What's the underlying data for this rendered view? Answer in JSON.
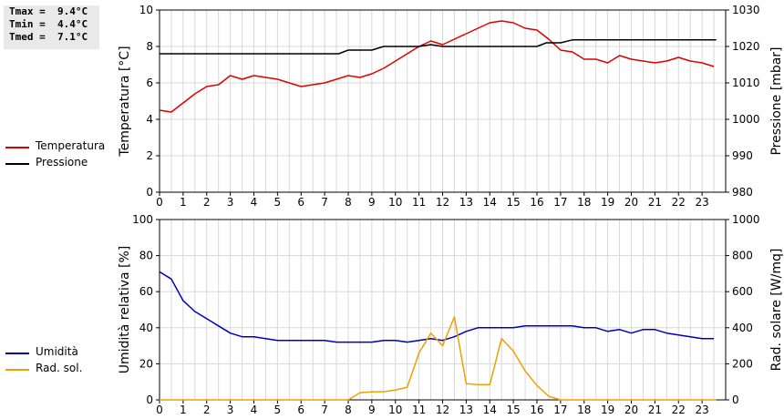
{
  "stats": {
    "tmax": "Tmax =  9.4°C",
    "tmin": "Tmin =  4.4°C",
    "tmed": "Tmed =  7.1°C"
  },
  "colors": {
    "temperature": "#dd0000",
    "pressure": "#000000",
    "humidity": "#0000bb",
    "radiation": "#f0a000",
    "grid": "#d8d8d8"
  },
  "chart_data": [
    {
      "type": "line",
      "x_ticks": [
        "0",
        "1",
        "2",
        "3",
        "4",
        "5",
        "6",
        "7",
        "8",
        "9",
        "10",
        "11",
        "12",
        "13",
        "14",
        "15",
        "16",
        "17",
        "18",
        "19",
        "20",
        "21",
        "22",
        "23"
      ],
      "y_ticks_left": [
        "0",
        "2",
        "4",
        "6",
        "8",
        "10"
      ],
      "y_ticks_right": [
        "980",
        "990",
        "1000",
        "1010",
        "1020",
        "1030"
      ],
      "ylabel_left": "Temperatura [°C]",
      "ylabel_right": "Pressione [mbar]",
      "ylim_left": [
        0,
        10
      ],
      "ylim_right": [
        980,
        1030
      ],
      "xlim": [
        0,
        24
      ],
      "grid": true,
      "legend_labels": [
        "Temperatura",
        "Pressione"
      ],
      "series": [
        {
          "name": "Temperatura",
          "axis": "left",
          "x": [
            0,
            0.5,
            1,
            1.5,
            2,
            2.5,
            3,
            3.5,
            4,
            4.5,
            5,
            5.5,
            6,
            6.5,
            7,
            7.5,
            8,
            8.5,
            9,
            9.5,
            10,
            10.5,
            11,
            11.5,
            12,
            12.5,
            13,
            13.5,
            14,
            14.5,
            15,
            15.5,
            16,
            16.5,
            17,
            17.5,
            18,
            18.5,
            19,
            19.5,
            20,
            20.5,
            21,
            21.5,
            22,
            22.5,
            23,
            23.5
          ],
          "values": [
            4.5,
            4.4,
            4.9,
            5.4,
            5.8,
            5.9,
            6.4,
            6.2,
            6.4,
            6.3,
            6.2,
            6.0,
            5.8,
            5.9,
            6.0,
            6.2,
            6.4,
            6.3,
            6.5,
            6.8,
            7.2,
            7.6,
            8.0,
            8.3,
            8.1,
            8.4,
            8.7,
            9.0,
            9.3,
            9.4,
            9.3,
            9.0,
            8.9,
            8.4,
            7.8,
            7.7,
            7.3,
            7.3,
            7.1,
            7.5,
            7.3,
            7.2,
            7.1,
            7.2,
            7.4,
            7.2,
            7.1,
            6.9
          ]
        },
        {
          "name": "Pressione",
          "axis": "right",
          "x": [
            0,
            1,
            2,
            3,
            4,
            5,
            6,
            7,
            7.6,
            8,
            8.5,
            9,
            9.5,
            10,
            11,
            11.5,
            12,
            13,
            14,
            15,
            16,
            16.4,
            17,
            17.5,
            18,
            19,
            20,
            21,
            22,
            23,
            23.6
          ],
          "values": [
            1018,
            1018,
            1018,
            1018,
            1018,
            1018,
            1018,
            1018,
            1018,
            1019,
            1019,
            1019,
            1020,
            1020,
            1020,
            1020.5,
            1020,
            1020,
            1020,
            1020,
            1020,
            1021,
            1021,
            1021.8,
            1021.8,
            1021.8,
            1021.8,
            1021.8,
            1021.8,
            1021.8,
            1021.8
          ]
        }
      ]
    },
    {
      "type": "line",
      "x_ticks": [
        "0",
        "1",
        "2",
        "3",
        "4",
        "5",
        "6",
        "7",
        "8",
        "9",
        "10",
        "11",
        "12",
        "13",
        "14",
        "15",
        "16",
        "17",
        "18",
        "19",
        "20",
        "21",
        "22",
        "23"
      ],
      "y_ticks_left": [
        "0",
        "20",
        "40",
        "60",
        "80",
        "100"
      ],
      "y_ticks_right": [
        "0",
        "200",
        "400",
        "600",
        "800",
        "1000"
      ],
      "ylabel_left": "Umidità relativa [%]",
      "ylabel_right": "Rad. solare [W/mq]",
      "ylim_left": [
        0,
        100
      ],
      "ylim_right": [
        0,
        1000
      ],
      "xlim": [
        0,
        24
      ],
      "grid": true,
      "legend_labels": [
        "Umidità",
        "Rad. sol."
      ],
      "series": [
        {
          "name": "Umidità",
          "axis": "left",
          "x": [
            0,
            0.5,
            1,
            1.5,
            2,
            2.5,
            3,
            3.5,
            4,
            4.5,
            5,
            5.5,
            6,
            6.5,
            7,
            7.5,
            8,
            8.5,
            9,
            9.5,
            10,
            10.5,
            11,
            11.5,
            12,
            12.5,
            13,
            13.5,
            14,
            14.5,
            15,
            15.5,
            16,
            16.5,
            17,
            17.5,
            18,
            18.5,
            19,
            19.5,
            20,
            20.5,
            21,
            21.5,
            22,
            22.5,
            23,
            23.5
          ],
          "values": [
            71,
            67,
            55,
            49,
            45,
            41,
            37,
            35,
            35,
            34,
            33,
            33,
            33,
            33,
            33,
            32,
            32,
            32,
            32,
            33,
            33,
            32,
            33,
            34,
            33,
            35,
            38,
            40,
            40,
            40,
            40,
            41,
            41,
            41,
            41,
            41,
            40,
            40,
            38,
            39,
            37,
            39,
            39,
            37,
            36,
            35,
            34,
            34
          ]
        },
        {
          "name": "Rad. sol.",
          "axis": "right",
          "x": [
            0,
            1,
            2,
            3,
            4,
            5,
            6,
            7,
            8,
            8.5,
            9,
            9.5,
            10,
            10.5,
            11,
            11.5,
            12,
            12.5,
            13,
            13.5,
            14,
            14.5,
            15,
            15.5,
            16,
            16.5,
            17,
            17.5,
            18,
            19,
            20,
            21,
            22,
            23,
            23.6
          ],
          "values": [
            0,
            0,
            0,
            0,
            0,
            0,
            0,
            0,
            0,
            40,
            45,
            45,
            55,
            70,
            260,
            370,
            300,
            460,
            90,
            85,
            85,
            340,
            270,
            160,
            80,
            20,
            0,
            0,
            0,
            0,
            0,
            0,
            0,
            0,
            0
          ]
        }
      ]
    }
  ]
}
